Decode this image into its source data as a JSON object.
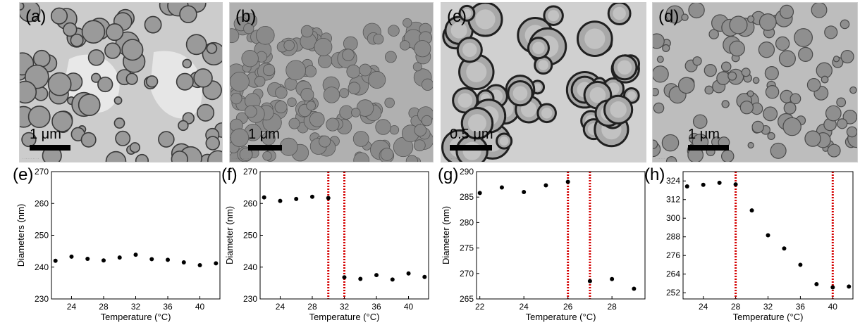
{
  "tem_panels": [
    {
      "label": "(a)",
      "scale": "1 μm",
      "style": "vesicles"
    },
    {
      "label": "(b)",
      "scale": "1 μm",
      "style": "dense"
    },
    {
      "label": "(c)",
      "scale": "0.5 μm",
      "style": "shells"
    },
    {
      "label": "(d)",
      "scale": "1 μm",
      "style": "dots"
    }
  ],
  "chart_data": [
    {
      "panel": "(e)",
      "type": "scatter",
      "xlabel": "Temperature (°C)",
      "ylabel": "Diameters (nm)",
      "xlim": [
        21.5,
        42.5
      ],
      "ylim": [
        230,
        270
      ],
      "xticks": [
        24,
        28,
        32,
        36,
        40
      ],
      "yticks": [
        230,
        240,
        250,
        260,
        270
      ],
      "x": [
        22,
        24,
        26,
        28,
        30,
        32,
        34,
        36,
        38,
        40,
        42
      ],
      "y": [
        242.0,
        243.3,
        242.6,
        242.1,
        243.0,
        243.9,
        242.5,
        242.3,
        241.5,
        240.6,
        241.2
      ],
      "vlines": []
    },
    {
      "panel": "(f)",
      "type": "scatter",
      "xlabel": "Temperature (°C)",
      "ylabel": "Diameter (nm)",
      "xlim": [
        21.5,
        42.5
      ],
      "ylim": [
        230,
        270
      ],
      "xticks": [
        24,
        28,
        32,
        36,
        40
      ],
      "yticks": [
        230,
        240,
        250,
        260,
        270
      ],
      "x": [
        22,
        24,
        26,
        28,
        30,
        32,
        34,
        36,
        38,
        40,
        42
      ],
      "y": [
        261.9,
        260.8,
        261.4,
        262.1,
        261.7,
        236.8,
        236.3,
        237.5,
        236.1,
        238.0,
        236.9
      ],
      "vlines": [
        30,
        32
      ]
    },
    {
      "panel": "(g)",
      "type": "scatter",
      "xlabel": "Temperature (°C)",
      "ylabel": "Diameter (nm)",
      "xlim": [
        21.85,
        29.5
      ],
      "ylim": [
        265,
        290
      ],
      "xticks": [
        22,
        24,
        26,
        28
      ],
      "yticks": [
        265,
        270,
        275,
        280,
        285,
        290
      ],
      "x": [
        22,
        23,
        24,
        25,
        26,
        27,
        28,
        29
      ],
      "y": [
        285.8,
        286.9,
        286.0,
        287.3,
        288.0,
        268.5,
        268.9,
        267.0
      ],
      "vlines": [
        26,
        27
      ]
    },
    {
      "panel": "(h)",
      "type": "scatter",
      "xlabel": "Temperature (°C)",
      "ylabel": "",
      "xlim": [
        21.5,
        42.5
      ],
      "ylim": [
        248,
        330
      ],
      "xticks": [
        24,
        28,
        32,
        36,
        40
      ],
      "yticks": [
        252,
        264,
        276,
        288,
        300,
        312,
        324
      ],
      "x": [
        22,
        24,
        26,
        28,
        30,
        32,
        34,
        36,
        38,
        40,
        42
      ],
      "y": [
        320.5,
        321.5,
        322.8,
        321.8,
        305.0,
        289.0,
        280.5,
        270.0,
        257.5,
        255.5,
        256.0
      ],
      "vlines": [
        28,
        40
      ]
    }
  ]
}
